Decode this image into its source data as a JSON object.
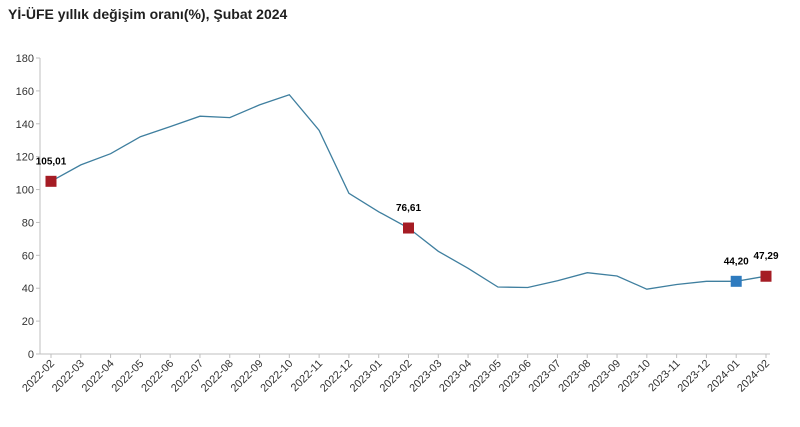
{
  "chart_data": {
    "type": "line",
    "title": "Yİ-ÜFE yıllık değişim oranı(%), Şubat 2024",
    "xlabel": "",
    "ylabel": "",
    "ylim": [
      0,
      180
    ],
    "yticks": [
      0,
      20,
      40,
      60,
      80,
      100,
      120,
      140,
      160,
      180
    ],
    "grid": false,
    "legend": "none",
    "categories": [
      "2022-02",
      "2022-03",
      "2022-04",
      "2022-05",
      "2022-06",
      "2022-07",
      "2022-08",
      "2022-09",
      "2022-10",
      "2022-11",
      "2022-12",
      "2023-01",
      "2023-02",
      "2023-03",
      "2023-04",
      "2023-05",
      "2023-06",
      "2023-07",
      "2023-08",
      "2023-09",
      "2023-10",
      "2023-11",
      "2023-12",
      "2024-01",
      "2024-02"
    ],
    "series": [
      {
        "color": "#3f7f9f",
        "values": [
          105.01,
          114.97,
          121.82,
          132.16,
          138.31,
          144.61,
          143.75,
          151.5,
          157.69,
          136.02,
          97.72,
          86.46,
          76.61,
          62.45,
          52.11,
          40.76,
          40.42,
          44.5,
          49.41,
          47.44,
          39.39,
          42.25,
          44.22,
          44.2,
          47.29
        ]
      }
    ],
    "highlights": [
      {
        "index": 0,
        "label": "105,01",
        "color": "#a51c24"
      },
      {
        "index": 12,
        "label": "76,61",
        "color": "#a51c24"
      },
      {
        "index": 23,
        "label": "44,20",
        "color": "#2e7bbf"
      },
      {
        "index": 24,
        "label": "47,29",
        "color": "#a51c24"
      }
    ],
    "axis_color": "#bfbfbf"
  }
}
